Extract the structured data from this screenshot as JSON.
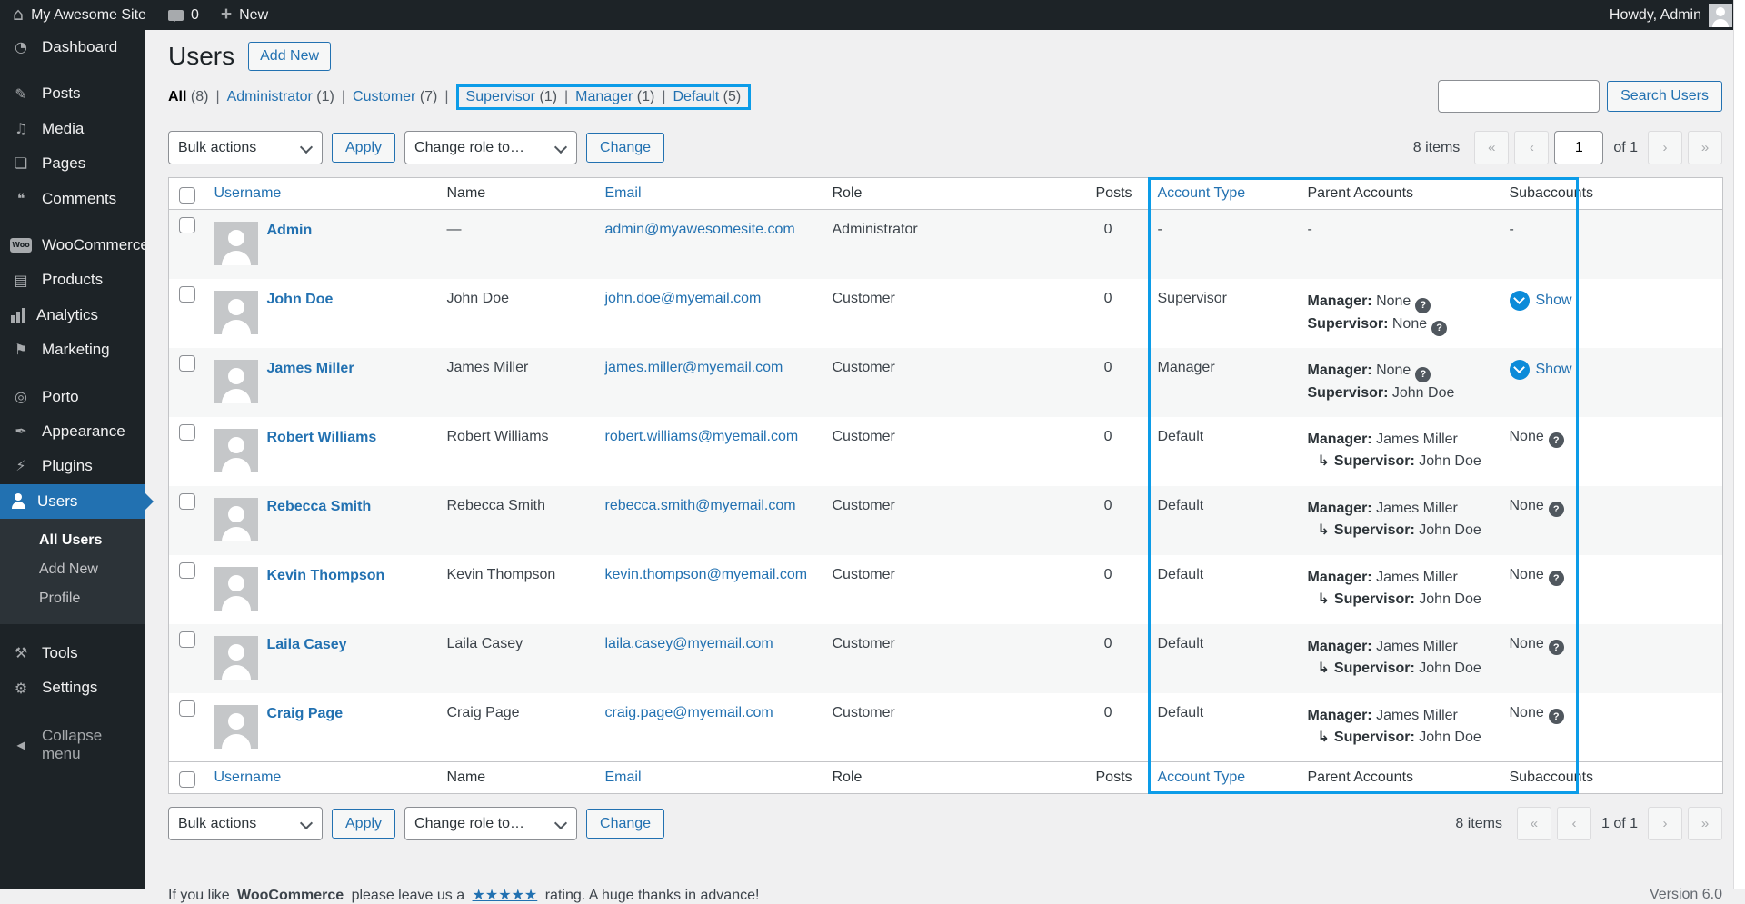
{
  "colors": {
    "accent_blue": "#2271b1",
    "highlight_box": "#0c9ce8",
    "menu_bg": "#1d2327",
    "submenu_bg": "#2c3338",
    "row_stripe": "#f6f7f7",
    "show_circle": "#0c8bd9"
  },
  "icons": {
    "arrow_branch": "↳",
    "help": "?",
    "home": "⌂"
  },
  "admin_bar": {
    "site_name": "My Awesome Site",
    "comment_count": "0",
    "new_label": "New",
    "howdy": "Howdy, Admin"
  },
  "sidebar": {
    "items": [
      {
        "id": "dashboard",
        "label": "Dashboard",
        "glyph": "◔",
        "gap_before": false,
        "active": false
      },
      {
        "id": "posts",
        "label": "Posts",
        "glyph": "✎",
        "gap_before": true,
        "active": false
      },
      {
        "id": "media",
        "label": "Media",
        "glyph": "♫",
        "gap_before": false,
        "active": false
      },
      {
        "id": "pages",
        "label": "Pages",
        "glyph": "❏",
        "gap_before": false,
        "active": false
      },
      {
        "id": "comments",
        "label": "Comments",
        "glyph": "❝",
        "gap_before": false,
        "active": false
      },
      {
        "id": "woocommerce",
        "label": "WooCommerce",
        "glyph": "Woo",
        "gap_before": true,
        "active": false
      },
      {
        "id": "products",
        "label": "Products",
        "glyph": "▤",
        "gap_before": false,
        "active": false
      },
      {
        "id": "analytics",
        "label": "Analytics",
        "glyph": "",
        "gap_before": false,
        "active": false
      },
      {
        "id": "marketing",
        "label": "Marketing",
        "glyph": "⚑",
        "gap_before": false,
        "active": false
      },
      {
        "id": "porto",
        "label": "Porto",
        "glyph": "◎",
        "gap_before": true,
        "active": false
      },
      {
        "id": "appearance",
        "label": "Appearance",
        "glyph": "✒",
        "gap_before": false,
        "active": false
      },
      {
        "id": "plugins",
        "label": "Plugins",
        "glyph": "⚡",
        "gap_before": false,
        "active": false
      },
      {
        "id": "users",
        "label": "Users",
        "glyph": "",
        "gap_before": false,
        "active": true
      },
      {
        "id": "tools",
        "label": "Tools",
        "glyph": "⚒",
        "gap_before": true,
        "active": false
      },
      {
        "id": "settings",
        "label": "Settings",
        "glyph": "⚙",
        "gap_before": false,
        "active": false
      }
    ],
    "submenu": [
      {
        "label": "All Users",
        "current": true
      },
      {
        "label": "Add New",
        "current": false
      },
      {
        "label": "Profile",
        "current": false
      }
    ],
    "collapse_label": "Collapse menu",
    "collapse_glyph": "◀"
  },
  "page": {
    "title": "Users",
    "add_new_label": "Add New"
  },
  "filters_separator": "|",
  "filters": [
    {
      "label": "All",
      "count": "(8)",
      "current": true,
      "highlight": false
    },
    {
      "label": "Administrator",
      "count": "(1)",
      "current": false,
      "highlight": false
    },
    {
      "label": "Customer",
      "count": "(7)",
      "current": false,
      "highlight": false
    },
    {
      "label": "Supervisor",
      "count": "(1)",
      "current": false,
      "highlight": true
    },
    {
      "label": "Manager",
      "count": "(1)",
      "current": false,
      "highlight": true
    },
    {
      "label": "Default",
      "count": "(5)",
      "current": false,
      "highlight": true
    }
  ],
  "toolbar": {
    "bulk_actions": "Bulk actions",
    "apply": "Apply",
    "change_role": "Change role to…",
    "change": "Change",
    "search_button": "Search Users",
    "search_value": "",
    "items_count": "8 items",
    "pagination_top": {
      "first": "«",
      "prev": "‹",
      "current_page": "1",
      "of": "of 1",
      "next": "›",
      "last": "»"
    },
    "pagination_bottom": {
      "first": "«",
      "prev": "‹",
      "range": "1 of 1",
      "next": "›",
      "last": "»"
    }
  },
  "table": {
    "headers": [
      "Username",
      "Name",
      "Email",
      "Role",
      "Posts",
      "Account Type",
      "Parent Accounts",
      "Subaccounts"
    ],
    "rows": [
      {
        "username": "Admin",
        "name": "—",
        "email": "admin@myawesomesite.com",
        "role": "Administrator",
        "posts": "0",
        "account_type": "-",
        "parent_dash": "-",
        "sub": {
          "type": "dash",
          "text": "-"
        }
      },
      {
        "username": "John Doe",
        "name": "John Doe",
        "email": "john.doe@myemail.com",
        "role": "Customer",
        "posts": "0",
        "account_type": "Supervisor",
        "parent_lines": [
          {
            "arrow": false,
            "label": "Manager:",
            "value": "None",
            "help": true
          },
          {
            "arrow": false,
            "label": "Supervisor:",
            "value": "None",
            "help": true
          }
        ],
        "sub": {
          "type": "show",
          "text": "Show"
        }
      },
      {
        "username": "James Miller",
        "name": "James Miller",
        "email": "james.miller@myemail.com",
        "role": "Customer",
        "posts": "0",
        "account_type": "Manager",
        "parent_lines": [
          {
            "arrow": false,
            "label": "Manager:",
            "value": "None",
            "help": true
          },
          {
            "arrow": false,
            "label": "Supervisor:",
            "value": "John Doe",
            "help": false
          }
        ],
        "sub": {
          "type": "show",
          "text": "Show"
        }
      },
      {
        "username": "Robert Williams",
        "name": "Robert Williams",
        "email": "robert.williams@myemail.com",
        "role": "Customer",
        "posts": "0",
        "account_type": "Default",
        "parent_lines": [
          {
            "arrow": false,
            "label": "Manager:",
            "value": "James Miller",
            "help": false
          },
          {
            "arrow": true,
            "label": "Supervisor:",
            "value": "John Doe",
            "help": false
          }
        ],
        "sub": {
          "type": "none",
          "text": "None",
          "help": true
        }
      },
      {
        "username": "Rebecca Smith",
        "name": "Rebecca Smith",
        "email": "rebecca.smith@myemail.com",
        "role": "Customer",
        "posts": "0",
        "account_type": "Default",
        "parent_lines": [
          {
            "arrow": false,
            "label": "Manager:",
            "value": "James Miller",
            "help": false
          },
          {
            "arrow": true,
            "label": "Supervisor:",
            "value": "John Doe",
            "help": false
          }
        ],
        "sub": {
          "type": "none",
          "text": "None",
          "help": true
        }
      },
      {
        "username": "Kevin Thompson",
        "name": "Kevin Thompson",
        "email": "kevin.thompson@myemail.com",
        "role": "Customer",
        "posts": "0",
        "account_type": "Default",
        "parent_lines": [
          {
            "arrow": false,
            "label": "Manager:",
            "value": "James Miller",
            "help": false
          },
          {
            "arrow": true,
            "label": "Supervisor:",
            "value": "John Doe",
            "help": false
          }
        ],
        "sub": {
          "type": "none",
          "text": "None",
          "help": true
        }
      },
      {
        "username": "Laila Casey",
        "name": "Laila Casey",
        "email": "laila.casey@myemail.com",
        "role": "Customer",
        "posts": "0",
        "account_type": "Default",
        "parent_lines": [
          {
            "arrow": false,
            "label": "Manager:",
            "value": "James Miller",
            "help": false
          },
          {
            "arrow": true,
            "label": "Supervisor:",
            "value": "John Doe",
            "help": false
          }
        ],
        "sub": {
          "type": "none",
          "text": "None",
          "help": true
        }
      },
      {
        "username": "Craig Page",
        "name": "Craig Page",
        "email": "craig.page@myemail.com",
        "role": "Customer",
        "posts": "0",
        "account_type": "Default",
        "parent_lines": [
          {
            "arrow": false,
            "label": "Manager:",
            "value": "James Miller",
            "help": false
          },
          {
            "arrow": true,
            "label": "Supervisor:",
            "value": "John Doe",
            "help": false
          }
        ],
        "sub": {
          "type": "none",
          "text": "None",
          "help": true
        }
      }
    ]
  },
  "footer": {
    "prefix": "If you like",
    "brand": "WooCommerce",
    "middle": "please leave us a",
    "stars": "★★★★★",
    "suffix": "rating. A huge thanks in advance!",
    "version": "Version 6.0"
  }
}
